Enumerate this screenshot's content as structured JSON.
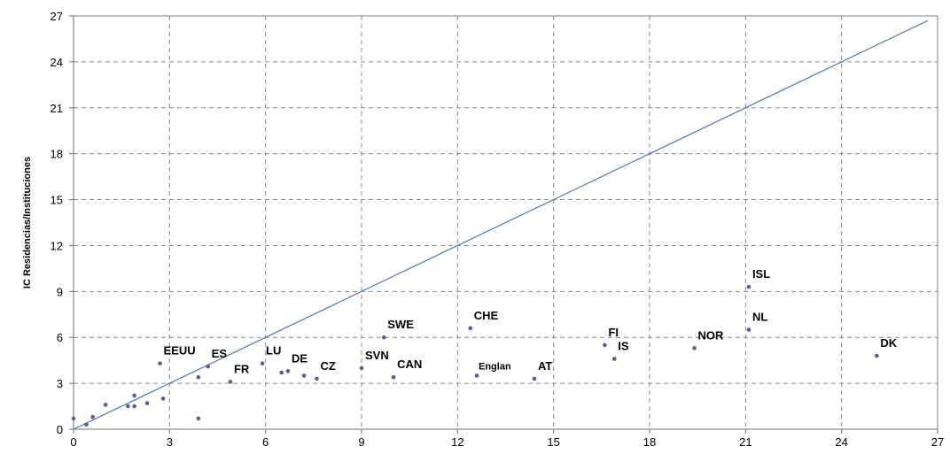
{
  "chart_data": {
    "type": "scatter",
    "title": "",
    "xlabel": "",
    "ylabel": "IC Residencias/Instituciones",
    "xlim": [
      0,
      27
    ],
    "ylim": [
      0,
      27
    ],
    "xticks": [
      "0",
      "3",
      "6",
      "9",
      "12",
      "15",
      "18",
      "21",
      "24",
      "27"
    ],
    "yticks": [
      "0",
      "3",
      "6",
      "9",
      "12",
      "15",
      "18",
      "21",
      "24",
      "27"
    ],
    "grid": true,
    "legend": "none",
    "colors": {
      "marker": "#5a5a9c",
      "reference_line": "#4a7ab5",
      "grid": "#8a8a8a",
      "frame": "#808080"
    },
    "reference_line": {
      "x": [
        0,
        26.7
      ],
      "y": [
        0,
        26.7
      ]
    },
    "points": [
      {
        "x": 0.0,
        "y": 0.7,
        "label": ""
      },
      {
        "x": 0.4,
        "y": 0.3,
        "label": ""
      },
      {
        "x": 0.6,
        "y": 0.8,
        "label": ""
      },
      {
        "x": 1.0,
        "y": 1.6,
        "label": ""
      },
      {
        "x": 1.7,
        "y": 1.5,
        "label": ""
      },
      {
        "x": 1.9,
        "y": 1.5,
        "label": ""
      },
      {
        "x": 1.9,
        "y": 2.2,
        "label": ""
      },
      {
        "x": 2.3,
        "y": 1.7,
        "label": ""
      },
      {
        "x": 2.8,
        "y": 2.0,
        "label": ""
      },
      {
        "x": 2.7,
        "y": 4.3,
        "label": "EEUU"
      },
      {
        "x": 3.9,
        "y": 0.7,
        "label": ""
      },
      {
        "x": 3.9,
        "y": 3.4,
        "label": ""
      },
      {
        "x": 4.2,
        "y": 4.1,
        "label": "ES"
      },
      {
        "x": 4.9,
        "y": 3.1,
        "label": "FR"
      },
      {
        "x": 5.9,
        "y": 4.3,
        "label": "LU"
      },
      {
        "x": 6.5,
        "y": 3.7,
        "label": ""
      },
      {
        "x": 6.7,
        "y": 3.8,
        "label": "DE"
      },
      {
        "x": 7.2,
        "y": 3.5,
        "label": ""
      },
      {
        "x": 7.6,
        "y": 3.3,
        "label": "CZ"
      },
      {
        "x": 9.0,
        "y": 4.0,
        "label": "SVN"
      },
      {
        "x": 9.7,
        "y": 6.0,
        "label": "SWE"
      },
      {
        "x": 10.0,
        "y": 3.4,
        "label": "CAN"
      },
      {
        "x": 12.4,
        "y": 6.6,
        "label": "CHE"
      },
      {
        "x": 12.6,
        "y": 3.5,
        "label": "Englan"
      },
      {
        "x": 14.4,
        "y": 3.3,
        "label": "AT"
      },
      {
        "x": 16.6,
        "y": 5.5,
        "label": "FI"
      },
      {
        "x": 16.9,
        "y": 4.6,
        "label": "IS"
      },
      {
        "x": 19.4,
        "y": 5.3,
        "label": "NOR"
      },
      {
        "x": 21.1,
        "y": 9.3,
        "label": "ISL"
      },
      {
        "x": 21.1,
        "y": 6.5,
        "label": "NL"
      },
      {
        "x": 25.1,
        "y": 4.8,
        "label": "DK"
      }
    ]
  }
}
